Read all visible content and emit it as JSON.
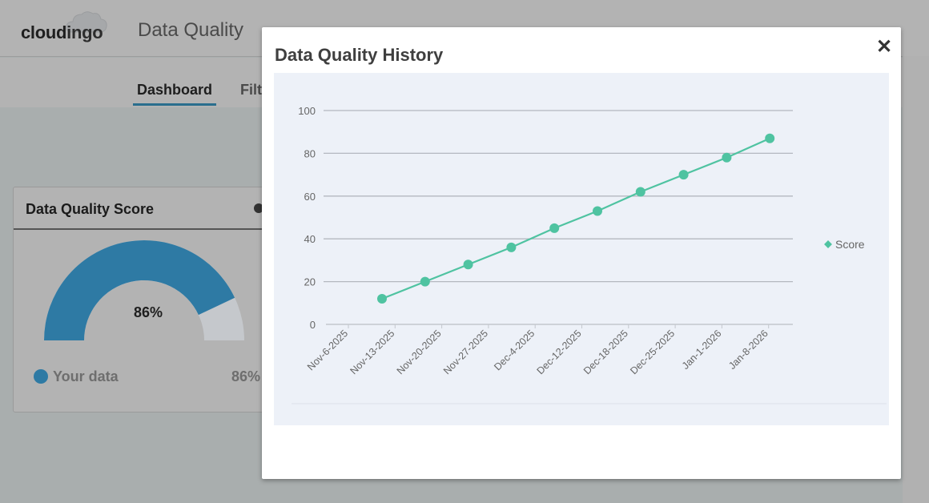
{
  "header": {
    "logo_part1": "cloud",
    "logo_part2": "ingo",
    "app_title": "Data Quality"
  },
  "subnav": {
    "tabs": [
      {
        "label": "Dashboard",
        "active": true
      },
      {
        "label": "Filt",
        "active": false
      }
    ]
  },
  "score_card": {
    "title": "Data Quality Score",
    "gauge_value": 86,
    "gauge_label": "86%",
    "legend_label": "Your data",
    "legend_value": "86%",
    "colors": {
      "filled": "#2e7aa4",
      "remaining": "#c5c8cc"
    }
  },
  "modal": {
    "title": "Data Quality History",
    "close_icon": "close-icon"
  },
  "chart_data": {
    "type": "line",
    "title": "Data Quality History",
    "xlabel": "",
    "ylabel": "",
    "ylim": [
      0,
      100
    ],
    "yticks": [
      0,
      20,
      40,
      60,
      80,
      100
    ],
    "grid": true,
    "legend_position": "right",
    "categories": [
      "Nov-6-2025",
      "Nov-13-2025",
      "Nov-20-2025",
      "Nov-27-2025",
      "Dec-4-2025",
      "Dec-12-2025",
      "Dec-18-2025",
      "Dec-25-2025",
      "Jan-1-2026",
      "Jan-8-2026"
    ],
    "series": [
      {
        "name": "Score",
        "color": "#4fc3a1",
        "values": [
          12,
          20,
          28,
          36,
          45,
          53,
          62,
          70,
          78,
          87
        ]
      }
    ]
  }
}
